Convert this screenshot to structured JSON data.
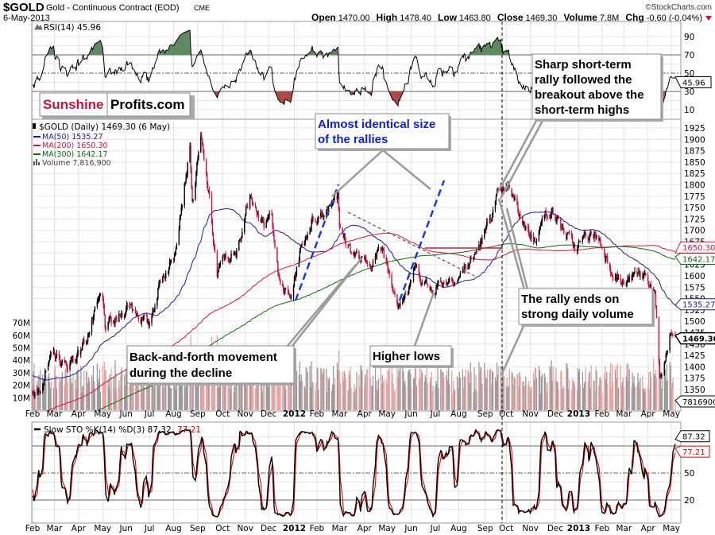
{
  "header": {
    "symbol": "$GOLD",
    "name": "Gold - Continuous Contract (EOD)",
    "exchange": "CME",
    "date": "6-May-2013",
    "copyright": "©StockCharts.com",
    "open_label": "Open",
    "open": "1470.00",
    "high_label": "High",
    "high": "1478.40",
    "low_label": "Low",
    "low": "1463.80",
    "close_label": "Close",
    "close": "1469.30",
    "volume_label": "Volume",
    "volume": "7.8M",
    "chg_label": "Chg",
    "chg": "-0.60 (-0.04%)"
  },
  "logo": {
    "part1": "Sunshine",
    "part2": "Profits.com"
  },
  "colors": {
    "up": "#000000",
    "down": "#d0103a",
    "ma50": "#1a1aa6",
    "ma200": "#e0103a",
    "ma300": "#0a6e0a",
    "rsi_fill_hi": "#5f8a5f",
    "rsi_fill_lo": "#b04848",
    "annot_blue": "#0a1ee6"
  },
  "legend": {
    "price": "$GOLD (Daily) 1469.30 (6 May)",
    "ma50": "MA(50) 1535.27",
    "ma200": "MA(200) 1650.30",
    "ma300": "MA(300) 1642.17",
    "volume": "Volume 7,816,900"
  },
  "rsi": {
    "label": "RSI(14) 45.96",
    "value_tag": "45.96",
    "ticks": [
      "90",
      "70",
      "50",
      "30",
      "10"
    ]
  },
  "stoch": {
    "label_main": "Slow STO %K(14) %D(3) 87.32,",
    "label_d": "77.21",
    "k_tag": "87.32",
    "d_tag": "77.21",
    "ticks": [
      "50",
      "20"
    ]
  },
  "tags": {
    "ma200": "1650.30",
    "ma300": "1642.17",
    "ma50": "1535.27",
    "close": "1469.30",
    "volume": "7816900"
  },
  "volume_ticks": [
    "70M",
    "60M",
    "50M",
    "40M",
    "30M",
    "20M",
    "10M"
  ],
  "annotations": {
    "rallies": [
      "Almost identical size",
      "of the rallies"
    ],
    "sharp": [
      "Sharp short-term",
      "rally followed the",
      "breakout above the",
      "short-term highs"
    ],
    "rally_ends": [
      "The rally ends on",
      "strong daily volume"
    ],
    "higher_lows": [
      "Higher lows"
    ],
    "back_forth": [
      "Back-and-forth movement",
      "during the decline"
    ]
  },
  "chart_data": {
    "type": "candlestick",
    "title": "$GOLD Gold - Continuous Contract (EOD) CME",
    "ylim": [
      1325,
      1935
    ],
    "yticks": [
      1350,
      1375,
      1400,
      1425,
      1450,
      1475,
      1500,
      1525,
      1550,
      1575,
      1600,
      1625,
      1650,
      1675,
      1700,
      1725,
      1750,
      1775,
      1800,
      1825,
      1850,
      1875,
      1900,
      1925
    ],
    "xlim": [
      "2011-02-01",
      "2013-05-06"
    ],
    "months": [
      {
        "label": "Feb",
        "date": "2011-02-01"
      },
      {
        "label": "Mar",
        "date": "2011-03-01"
      },
      {
        "label": "Apr",
        "date": "2011-04-01"
      },
      {
        "label": "May",
        "date": "2011-05-02"
      },
      {
        "label": "Jun",
        "date": "2011-06-01"
      },
      {
        "label": "Jul",
        "date": "2011-07-01"
      },
      {
        "label": "Aug",
        "date": "2011-08-01"
      },
      {
        "label": "Sep",
        "date": "2011-09-01"
      },
      {
        "label": "Oct",
        "date": "2011-10-03"
      },
      {
        "label": "Nov",
        "date": "2011-11-01"
      },
      {
        "label": "Dec",
        "date": "2011-12-01"
      },
      {
        "label": "2012",
        "date": "2012-01-03",
        "bold": true
      },
      {
        "label": "Feb",
        "date": "2012-02-01"
      },
      {
        "label": "Mar",
        "date": "2012-03-01"
      },
      {
        "label": "Apr",
        "date": "2012-04-02"
      },
      {
        "label": "May",
        "date": "2012-05-01"
      },
      {
        "label": "Jun",
        "date": "2012-06-01"
      },
      {
        "label": "Jul",
        "date": "2012-07-02"
      },
      {
        "label": "Aug",
        "date": "2012-08-01"
      },
      {
        "label": "Sep",
        "date": "2012-09-04"
      },
      {
        "label": "Oct",
        "date": "2012-10-01"
      },
      {
        "label": "Nov",
        "date": "2012-11-01"
      },
      {
        "label": "Dec",
        "date": "2012-12-03"
      },
      {
        "label": "2013",
        "date": "2013-01-02",
        "bold": true
      },
      {
        "label": "Feb",
        "date": "2013-02-01"
      },
      {
        "label": "Mar",
        "date": "2013-03-01"
      },
      {
        "label": "Apr",
        "date": "2013-04-01"
      },
      {
        "label": "May",
        "date": "2013-05-01"
      }
    ],
    "price_path": [
      [
        "2011-02-01",
        1335
      ],
      [
        "2011-02-15",
        1375
      ],
      [
        "2011-03-01",
        1430
      ],
      [
        "2011-03-15",
        1400
      ],
      [
        "2011-04-01",
        1430
      ],
      [
        "2011-04-15",
        1480
      ],
      [
        "2011-05-01",
        1560
      ],
      [
        "2011-05-05",
        1490
      ],
      [
        "2011-05-20",
        1500
      ],
      [
        "2011-06-05",
        1540
      ],
      [
        "2011-06-30",
        1490
      ],
      [
        "2011-07-15",
        1590
      ],
      [
        "2011-08-01",
        1640
      ],
      [
        "2011-08-10",
        1750
      ],
      [
        "2011-08-22",
        1880
      ],
      [
        "2011-08-25",
        1760
      ],
      [
        "2011-09-05",
        1900
      ],
      [
        "2011-09-15",
        1780
      ],
      [
        "2011-09-26",
        1600
      ],
      [
        "2011-10-05",
        1640
      ],
      [
        "2011-10-20",
        1640
      ],
      [
        "2011-11-08",
        1790
      ],
      [
        "2011-11-25",
        1700
      ],
      [
        "2011-12-05",
        1740
      ],
      [
        "2011-12-15",
        1580
      ],
      [
        "2011-12-29",
        1550
      ],
      [
        "2012-01-10",
        1650
      ],
      [
        "2012-01-25",
        1720
      ],
      [
        "2012-02-10",
        1740
      ],
      [
        "2012-02-28",
        1790
      ],
      [
        "2012-03-01",
        1700
      ],
      [
        "2012-03-15",
        1660
      ],
      [
        "2012-04-05",
        1620
      ],
      [
        "2012-04-25",
        1660
      ],
      [
        "2012-05-15",
        1545
      ],
      [
        "2012-05-30",
        1570
      ],
      [
        "2012-06-05",
        1620
      ],
      [
        "2012-06-25",
        1570
      ],
      [
        "2012-07-15",
        1590
      ],
      [
        "2012-08-01",
        1600
      ],
      [
        "2012-08-20",
        1640
      ],
      [
        "2012-09-05",
        1700
      ],
      [
        "2012-09-20",
        1775
      ],
      [
        "2012-10-05",
        1790
      ],
      [
        "2012-10-22",
        1720
      ],
      [
        "2012-11-05",
        1680
      ],
      [
        "2012-11-25",
        1750
      ],
      [
        "2012-12-10",
        1710
      ],
      [
        "2012-12-28",
        1660
      ],
      [
        "2013-01-15",
        1690
      ],
      [
        "2013-01-25",
        1690
      ],
      [
        "2013-02-15",
        1610
      ],
      [
        "2013-02-28",
        1580
      ],
      [
        "2013-03-15",
        1600
      ],
      [
        "2013-03-30",
        1600
      ],
      [
        "2013-04-10",
        1560
      ],
      [
        "2013-04-16",
        1360
      ],
      [
        "2013-04-22",
        1410
      ],
      [
        "2013-04-30",
        1470
      ],
      [
        "2013-05-06",
        1469.3
      ]
    ],
    "last": {
      "open": 1470.0,
      "high": 1478.4,
      "low": 1463.8,
      "close": 1469.3,
      "volume": 7816900,
      "ma50": 1535.27,
      "ma200": 1650.3,
      "ma300": 1642.17,
      "rsi14": 45.96,
      "sto_k": 87.32,
      "sto_d": 77.21
    },
    "marker_date": "2012-09-13"
  }
}
